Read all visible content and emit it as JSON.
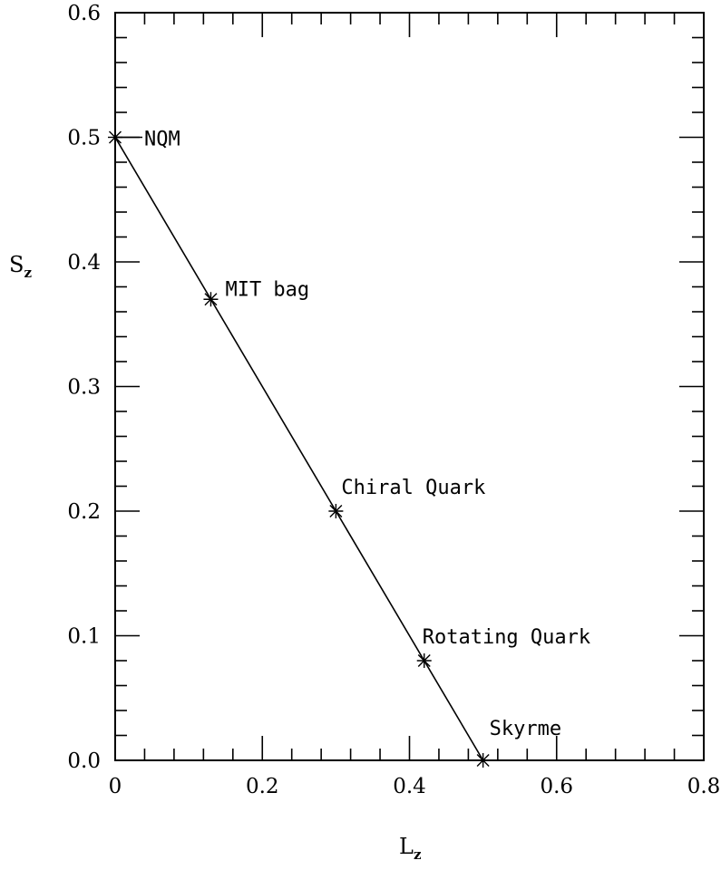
{
  "chart_data": {
    "type": "line",
    "xlabel": "L",
    "xlabel_sub": "z",
    "ylabel": "S",
    "ylabel_sub": "z",
    "xlim": [
      0,
      0.8
    ],
    "ylim": [
      0,
      0.6
    ],
    "xticks": [
      0,
      0.2,
      0.4,
      0.6,
      0.8
    ],
    "xtick_labels": [
      "0",
      "0.2",
      "0.4",
      "0.6",
      "0.8"
    ],
    "yticks": [
      0,
      0.1,
      0.2,
      0.3,
      0.4,
      0.5,
      0.6
    ],
    "ytick_labels": [
      "0.0",
      "0.1",
      "0.2",
      "0.3",
      "0.4",
      "0.5",
      "0.6"
    ],
    "x_minor_step": 0.04,
    "y_minor_step": 0.02,
    "grid": false,
    "line": {
      "x": [
        0,
        0.5
      ],
      "y": [
        0.5,
        0
      ]
    },
    "points": [
      {
        "label": "NQM",
        "x": 0.0,
        "y": 0.5
      },
      {
        "label": "MIT bag",
        "x": 0.13,
        "y": 0.37
      },
      {
        "label": "Chiral Quark",
        "x": 0.3,
        "y": 0.2
      },
      {
        "label": "Rotating Quark",
        "x": 0.42,
        "y": 0.08
      },
      {
        "label": "Skyrme",
        "x": 0.5,
        "y": 0.0
      }
    ],
    "marker": "asterisk",
    "color": "#000000"
  }
}
